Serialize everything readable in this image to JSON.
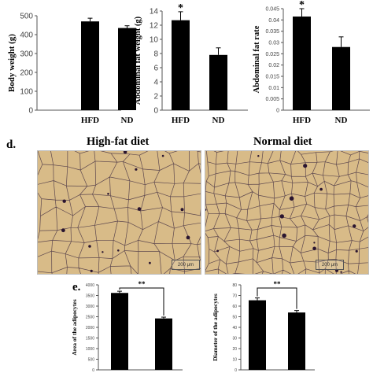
{
  "chart_data": [
    {
      "type": "bar",
      "categories": [
        "HFD",
        "ND"
      ],
      "values": [
        470,
        435
      ],
      "errors": [
        17,
        12
      ],
      "ylabel": "Body weight (g)",
      "ylim": [
        0,
        500
      ],
      "yticks": [
        "0",
        "100",
        "200",
        "300",
        "400",
        "500"
      ],
      "sig_marks": [
        "",
        ""
      ]
    },
    {
      "type": "bar",
      "categories": [
        "HFD",
        "ND"
      ],
      "values": [
        12.7,
        7.8
      ],
      "errors": [
        1.2,
        1.0
      ],
      "ylabel": "Abdominal fat weight (g)",
      "ylim": [
        0,
        14
      ],
      "yticks": [
        "0",
        "2",
        "4",
        "6",
        "8",
        "10",
        "12",
        "14"
      ],
      "sig_marks": [
        "*",
        ""
      ]
    },
    {
      "type": "bar",
      "categories": [
        "HFD",
        "ND"
      ],
      "values": [
        0.0415,
        0.028
      ],
      "errors": [
        0.0035,
        0.0045
      ],
      "ylabel": "Abdominal fat rate",
      "ylim": [
        0,
        0.045
      ],
      "yticks": [
        "0",
        "0.005",
        "0.01",
        "0.015",
        "0.02",
        "0.025",
        "0.03",
        "0.035",
        "0.04",
        "0.045"
      ],
      "sig_marks": [
        "*",
        ""
      ]
    },
    {
      "type": "bar",
      "categories": [
        "",
        ""
      ],
      "values": [
        3620,
        2420
      ],
      "errors": [
        80,
        60
      ],
      "ylabel": "Area of the adipocytes",
      "ylim": [
        0,
        4000
      ],
      "yticks": [
        "0",
        "500",
        "1000",
        "1500",
        "2000",
        "2500",
        "3000",
        "3500",
        "4000"
      ],
      "bracket": "**"
    },
    {
      "type": "bar",
      "categories": [
        "",
        ""
      ],
      "values": [
        65.5,
        54
      ],
      "errors": [
        2.2,
        1.8
      ],
      "ylabel": "Diameter of the adipocytes",
      "ylim": [
        0,
        80
      ],
      "yticks": [
        "0",
        "10",
        "20",
        "30",
        "40",
        "50",
        "60",
        "70",
        "80"
      ],
      "bracket": "**"
    }
  ],
  "panel_letters": {
    "d": "d.",
    "e": "e."
  },
  "micrographs": {
    "left_title": "High-fat diet",
    "right_title": "Normal diet",
    "left_scale": "200 μm",
    "right_scale": "200 μm"
  },
  "colors": {
    "bar": "#000000",
    "tissue_bg": "#d8bb88",
    "membrane": "#3e2a40",
    "nucleus": "#2a1530"
  }
}
